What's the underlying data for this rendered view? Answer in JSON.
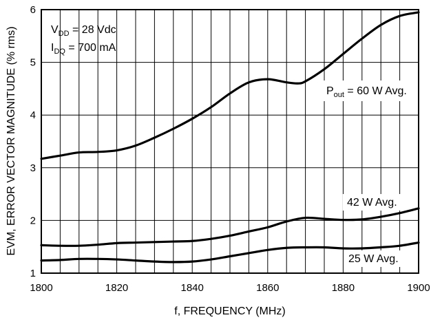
{
  "chart_data": {
    "type": "line",
    "xlabel": "f, FREQUENCY (MHz)",
    "ylabel": "EVM, ERROR VECTOR MAGNITUDE (% rms)",
    "xlim": [
      1800,
      1900
    ],
    "ylim": [
      1,
      6
    ],
    "x_ticks": [
      "1800",
      "1820",
      "1840",
      "1860",
      "1880",
      "1900"
    ],
    "y_ticks": [
      "1",
      "2",
      "3",
      "4",
      "5",
      "6"
    ],
    "grid": true,
    "conditions": {
      "vdd": {
        "main": "V",
        "sub": "DD",
        "rest": " = 28 Vdc"
      },
      "idq": {
        "main": "I",
        "sub": "DQ",
        "rest": " = 700 mA"
      }
    },
    "series": [
      {
        "name": "P_out = 60 W Avg.",
        "label_main": "P",
        "label_sub": "out",
        "label_rest": " = 60 W Avg.",
        "x": [
          1800,
          1805,
          1810,
          1815,
          1820,
          1825,
          1830,
          1835,
          1840,
          1845,
          1850,
          1855,
          1860,
          1865,
          1868,
          1870,
          1875,
          1880,
          1885,
          1890,
          1895,
          1900
        ],
        "y": [
          3.17,
          3.23,
          3.29,
          3.3,
          3.33,
          3.42,
          3.57,
          3.74,
          3.93,
          4.15,
          4.41,
          4.62,
          4.68,
          4.62,
          4.6,
          4.64,
          4.87,
          5.16,
          5.45,
          5.71,
          5.88,
          5.95
        ]
      },
      {
        "name": "42 W Avg.",
        "label_main": "42 W Avg.",
        "label_sub": "",
        "label_rest": "",
        "x": [
          1800,
          1805,
          1810,
          1815,
          1820,
          1825,
          1830,
          1835,
          1840,
          1845,
          1850,
          1855,
          1860,
          1865,
          1870,
          1875,
          1880,
          1885,
          1890,
          1895,
          1900
        ],
        "y": [
          1.53,
          1.52,
          1.52,
          1.54,
          1.57,
          1.58,
          1.59,
          1.6,
          1.61,
          1.65,
          1.71,
          1.79,
          1.87,
          1.98,
          2.05,
          2.03,
          2.01,
          2.02,
          2.07,
          2.14,
          2.23
        ]
      },
      {
        "name": "25 W Avg.",
        "label_main": "25 W Avg.",
        "label_sub": "",
        "label_rest": "",
        "x": [
          1800,
          1805,
          1810,
          1815,
          1820,
          1825,
          1830,
          1835,
          1840,
          1845,
          1850,
          1855,
          1860,
          1865,
          1870,
          1875,
          1880,
          1885,
          1890,
          1895,
          1900
        ],
        "y": [
          1.24,
          1.25,
          1.27,
          1.27,
          1.26,
          1.24,
          1.22,
          1.21,
          1.22,
          1.26,
          1.32,
          1.38,
          1.44,
          1.48,
          1.49,
          1.49,
          1.47,
          1.47,
          1.49,
          1.52,
          1.58
        ]
      }
    ]
  }
}
